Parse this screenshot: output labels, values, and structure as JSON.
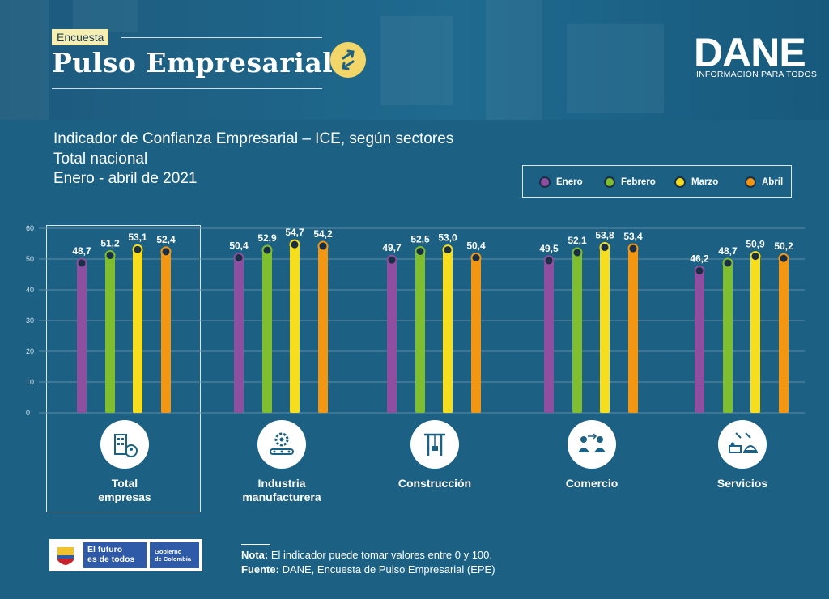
{
  "header": {
    "badge": "Encuesta",
    "survey_title": "Pulso Empresarial",
    "logo_text": "DANE",
    "logo_tagline": "INFORMACIÓN PARA TODOS"
  },
  "chart_title": {
    "line1": "Indicador de Confianza Empresarial – ICE, según sectores",
    "line2": "Total nacional",
    "line3": "Enero - abril de 2021"
  },
  "colors": {
    "Enero": "#8e4fa0",
    "Febrero": "#7fbe2f",
    "Marzo": "#f6de1f",
    "Abril": "#f39712",
    "grid": "#5f8aa3"
  },
  "chart_data": {
    "type": "bar",
    "title": "Indicador de Confianza Empresarial – ICE, según sectores",
    "categories": [
      "Total empresas",
      "Industria manufacturera",
      "Construcción",
      "Comercio",
      "Servicios"
    ],
    "series": [
      {
        "name": "Enero",
        "values": [
          48.7,
          50.4,
          49.7,
          49.5,
          46.2
        ],
        "labels": [
          "48,7",
          "50,4",
          "49,7",
          "49,5",
          "46,2"
        ]
      },
      {
        "name": "Febrero",
        "values": [
          51.2,
          52.9,
          52.5,
          52.1,
          48.7
        ],
        "labels": [
          "51,2",
          "52,9",
          "52,5",
          "52,1",
          "48,7"
        ]
      },
      {
        "name": "Marzo",
        "values": [
          53.1,
          54.7,
          53.0,
          53.8,
          50.9
        ],
        "labels": [
          "53,1",
          "54,7",
          "53,0",
          "53,8",
          "50,9"
        ]
      },
      {
        "name": "Abril",
        "values": [
          52.4,
          54.2,
          50.4,
          53.4,
          50.2
        ],
        "labels": [
          "52,4",
          "54,2",
          "50,4",
          "53,4",
          "50,2"
        ]
      }
    ],
    "ylim": [
      0,
      60
    ],
    "yticks": [
      "0",
      "10",
      "20",
      "30",
      "40",
      "50",
      "60"
    ],
    "grid": true,
    "legend_position": "top-right"
  },
  "sectors": [
    {
      "label_line1": "Total",
      "label_line2": "empresas",
      "icon": "building-person-icon"
    },
    {
      "label_line1": "Industria",
      "label_line2": "manufacturera",
      "icon": "gear-factory-icon"
    },
    {
      "label_line1": "Construcción",
      "label_line2": "",
      "icon": "crane-icon"
    },
    {
      "label_line1": "Comercio",
      "label_line2": "",
      "icon": "trade-people-icon"
    },
    {
      "label_line1": "Servicios",
      "label_line2": "",
      "icon": "hotel-service-icon"
    }
  ],
  "footer": {
    "logo_line1": "El futuro",
    "logo_line2": "es de todos",
    "gov_line1": "Gobierno",
    "gov_line2": "de Colombia",
    "note_label": "Nota:",
    "note_text": " El indicador puede tomar valores entre 0 y 100.",
    "source_label": "Fuente:",
    "source_text": " DANE, Encuesta de Pulso Empresarial (EPE)"
  }
}
